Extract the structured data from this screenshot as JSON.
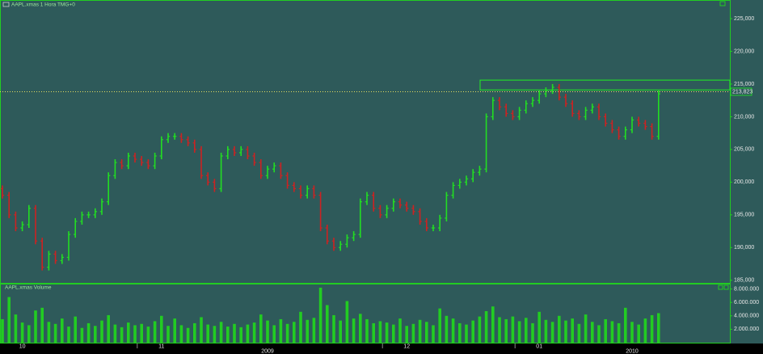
{
  "chart_data": {
    "type": "ohlc",
    "title": "AAPL.xmas 1 Hora TMG+0",
    "open": [
      199,
      198,
      195,
      193,
      193.5,
      196,
      191,
      187,
      189,
      188,
      188.5,
      192,
      194,
      195,
      195,
      195.5,
      197,
      201,
      203,
      202.5,
      204,
      203.5,
      203,
      202.5,
      204,
      206.5,
      207,
      207,
      206.5,
      206,
      205,
      201,
      200,
      199,
      204,
      205,
      204.5,
      205,
      204,
      203,
      201,
      202,
      202.5,
      201,
      199.5,
      199,
      198,
      199,
      198,
      193,
      191,
      190,
      190.5,
      191.5,
      192,
      197,
      198,
      196,
      195,
      196,
      197,
      196.5,
      196,
      195.5,
      194,
      193,
      193,
      194.5,
      198,
      199.5,
      200,
      200.5,
      201.5,
      202,
      210,
      212.5,
      211.5,
      210.5,
      210,
      211,
      212,
      212.5,
      213.5,
      214,
      214.5,
      213,
      212,
      210.5,
      210,
      211,
      211.5,
      210,
      209,
      208,
      207,
      208,
      209.5,
      209,
      208.5,
      207
    ],
    "high": [
      199.5,
      198.5,
      195.5,
      194,
      196.5,
      196.5,
      191.5,
      189.5,
      189.5,
      189,
      192.5,
      194.5,
      195.5,
      195.5,
      196,
      197.5,
      201.5,
      203.5,
      203.5,
      204.5,
      204.5,
      204,
      203.5,
      204.5,
      207,
      207.5,
      207.5,
      207.5,
      207,
      206.5,
      205.5,
      201.5,
      200.5,
      204.5,
      205.5,
      205.5,
      205.5,
      205.5,
      204.5,
      203.5,
      202.5,
      203,
      203,
      201.5,
      200,
      199.5,
      199.5,
      199.5,
      198.5,
      193.5,
      191.5,
      191,
      192,
      192.5,
      197.5,
      198.5,
      198.5,
      196.5,
      196.5,
      197.5,
      197.5,
      197,
      196.5,
      196,
      194.5,
      193.5,
      195,
      198.5,
      200,
      200.5,
      201,
      202,
      202.5,
      210.5,
      213,
      213,
      212,
      211,
      211.5,
      212.5,
      213,
      214,
      214.5,
      215,
      215,
      213.5,
      212.5,
      211,
      211.5,
      212,
      212,
      210.5,
      209.5,
      208.5,
      208.5,
      210,
      210,
      209.5,
      209,
      214
    ],
    "low": [
      197.5,
      194.5,
      192.5,
      192.5,
      193,
      190.5,
      186.5,
      186.5,
      187.5,
      187.5,
      188,
      191.5,
      193.5,
      194.5,
      194.5,
      195,
      196.5,
      200.5,
      202,
      202,
      203,
      202.5,
      202,
      202,
      203.5,
      206,
      206.5,
      206,
      205.5,
      204.5,
      200.5,
      199.5,
      198.5,
      198.5,
      203.5,
      204,
      204,
      203.5,
      202.5,
      200.5,
      200.5,
      201.5,
      200.5,
      199,
      198.5,
      197.5,
      197.5,
      197.5,
      192.5,
      190.5,
      189.5,
      189.5,
      190,
      191,
      191.5,
      196.5,
      195.5,
      194.5,
      194.5,
      195.5,
      196,
      195.5,
      195,
      193.5,
      192.5,
      192.5,
      192.5,
      194,
      197.5,
      199,
      199.5,
      200,
      201,
      201.5,
      209.5,
      211,
      210,
      209.5,
      209.5,
      210.5,
      211.5,
      212,
      213,
      213.5,
      212.5,
      211.5,
      210,
      209.5,
      209.5,
      210.5,
      209.5,
      208.5,
      207.5,
      206.5,
      206.5,
      207.5,
      208.5,
      208,
      206.5,
      206.5
    ],
    "close": [
      198,
      195,
      193,
      193.5,
      196,
      191,
      187,
      189,
      188,
      188.5,
      192,
      194,
      195,
      195,
      195.5,
      197,
      201,
      203,
      202.5,
      204,
      203.5,
      203,
      202.5,
      204,
      206.5,
      207,
      207,
      206.5,
      206,
      205,
      201,
      200,
      199,
      204,
      205,
      204.5,
      205,
      204,
      203,
      201,
      202,
      202.5,
      201,
      199.5,
      199,
      198,
      199,
      198,
      193,
      191,
      190,
      190.5,
      191.5,
      192,
      197,
      198,
      196,
      195,
      196,
      197,
      196.5,
      196,
      195.5,
      194,
      193,
      193,
      194.5,
      198,
      199.5,
      200,
      200.5,
      201.5,
      202,
      210,
      212.5,
      211.5,
      210.5,
      210,
      211,
      212,
      212.5,
      213.5,
      214,
      214.5,
      213,
      212,
      210.5,
      210,
      211,
      211.5,
      210,
      209,
      208,
      207,
      208,
      209.5,
      209,
      208.5,
      207,
      213.5
    ],
    "ylim": [
      184.6,
      227.6
    ],
    "yticks": [
      {
        "value": 185,
        "label": "185,000"
      },
      {
        "value": 190,
        "label": "190,000"
      },
      {
        "value": 195,
        "label": "195,000"
      },
      {
        "value": 200,
        "label": "200,000"
      },
      {
        "value": 205,
        "label": "205,000"
      },
      {
        "value": 210,
        "label": "210,000"
      },
      {
        "value": 215,
        "label": "215,000"
      },
      {
        "value": 220,
        "label": "220,000"
      },
      {
        "value": 225,
        "label": "225,000"
      }
    ],
    "last_price": {
      "value": 213.823,
      "label": "213,823"
    },
    "zone": [
      214.1,
      215.6
    ],
    "up_color": "#22dd22",
    "down_color": "#cc2222",
    "xticks": [
      {
        "value": 3,
        "label": "10"
      },
      {
        "value": 24,
        "label": "11"
      },
      {
        "value": 61,
        "label": "12"
      },
      {
        "value": 81,
        "label": "01"
      }
    ],
    "year_ticks": [
      {
        "value": 40,
        "label": "2009"
      },
      {
        "value": 95,
        "label": "2010"
      }
    ],
    "volume": {
      "title": "AAPL.xmas Volume",
      "color": "#22cc22",
      "values": [
        3500000,
        6800000,
        4200000,
        3000000,
        2600000,
        4800000,
        5200000,
        3100000,
        2800000,
        3600000,
        2400000,
        3900000,
        2200000,
        2900000,
        2500000,
        3300000,
        4100000,
        2700000,
        2300000,
        3000000,
        2600000,
        2800000,
        2400000,
        3200000,
        4000000,
        2500000,
        3600000,
        2600000,
        2200000,
        2900000,
        3800000,
        2700000,
        2500000,
        3100000,
        2400000,
        2800000,
        2300000,
        2700000,
        3000000,
        4200000,
        3300000,
        2600000,
        3500000,
        2800000,
        3100000,
        4600000,
        3400000,
        3700000,
        8200000,
        5600000,
        4100000,
        3300000,
        6200000,
        3600000,
        4300000,
        3500000,
        2900000,
        3200000,
        3000000,
        2700000,
        3600000,
        2500000,
        2800000,
        3400000,
        3100000,
        2600000,
        5100000,
        4000000,
        3600000,
        2900000,
        2700000,
        3300000,
        3900000,
        4700000,
        5400000,
        3800000,
        3500000,
        3900000,
        3200000,
        3700000,
        2900000,
        4600000,
        3400000,
        3100000,
        4000000,
        3300000,
        3600000,
        2800000,
        4200000,
        3100000,
        2600000,
        3500000,
        3200000,
        2900000,
        5200000,
        3100000,
        2700000,
        3600000,
        4100000,
        4400000
      ],
      "ylim": [
        0,
        8670000
      ],
      "yticks": [
        {
          "value": 2000000,
          "label": "2.000.000"
        },
        {
          "value": 4000000,
          "label": "4.000.000"
        },
        {
          "value": 6000000,
          "label": "6.000.000"
        },
        {
          "value": 8000000,
          "label": "8.000.000"
        }
      ]
    }
  }
}
